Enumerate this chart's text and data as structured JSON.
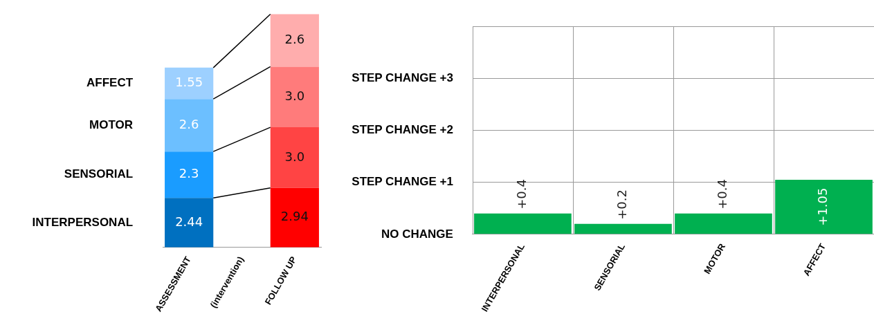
{
  "chart_data": [
    {
      "type": "bar",
      "stacked": true,
      "categories": [
        "ASSESSMENT",
        "(intervention)",
        "FOLLOW UP"
      ],
      "tick_labels": "x",
      "series": [
        {
          "name": "INTERPERSONAL",
          "colors": [
            "#0070c0",
            null,
            "#ff0000"
          ],
          "values": [
            2.44,
            null,
            2.94
          ],
          "value_labels": [
            "2.44",
            null,
            "2.94"
          ]
        },
        {
          "name": "SENSORIAL",
          "colors": [
            "#1a9cff",
            null,
            "#ff4444"
          ],
          "values": [
            2.3,
            null,
            3.0
          ],
          "value_labels": [
            "2.3",
            null,
            "3.0"
          ]
        },
        {
          "name": "MOTOR",
          "colors": [
            "#6cbfff",
            null,
            "#ff7b7b"
          ],
          "values": [
            2.6,
            null,
            3.0
          ],
          "value_labels": [
            "2.6",
            null,
            "3.0"
          ]
        },
        {
          "name": "AFFECT",
          "colors": [
            "#9dd0ff",
            null,
            "#ffadad"
          ],
          "values": [
            1.55,
            null,
            2.6
          ],
          "value_labels": [
            "1.55",
            null,
            "2.6"
          ]
        }
      ]
    },
    {
      "type": "bar",
      "categories": [
        "INTERPERSONAL",
        "SENSORIAL",
        "MOTOR",
        "AFFECT"
      ],
      "color": "#00b050",
      "values": [
        0.4,
        0.2,
        0.4,
        1.05
      ],
      "value_labels": [
        "+0.4",
        "+0.2",
        "+0.4",
        "+1.05"
      ],
      "ylim": [
        0,
        4
      ],
      "yticks": [
        {
          "value": 0,
          "label": "NO CHANGE"
        },
        {
          "value": 1,
          "label": "STEP CHANGE +1"
        },
        {
          "value": 2,
          "label": "STEP CHANGE +2"
        },
        {
          "value": 3,
          "label": "STEP CHANGE +3"
        },
        {
          "value": 4,
          "label": null
        }
      ],
      "grid": true
    }
  ]
}
